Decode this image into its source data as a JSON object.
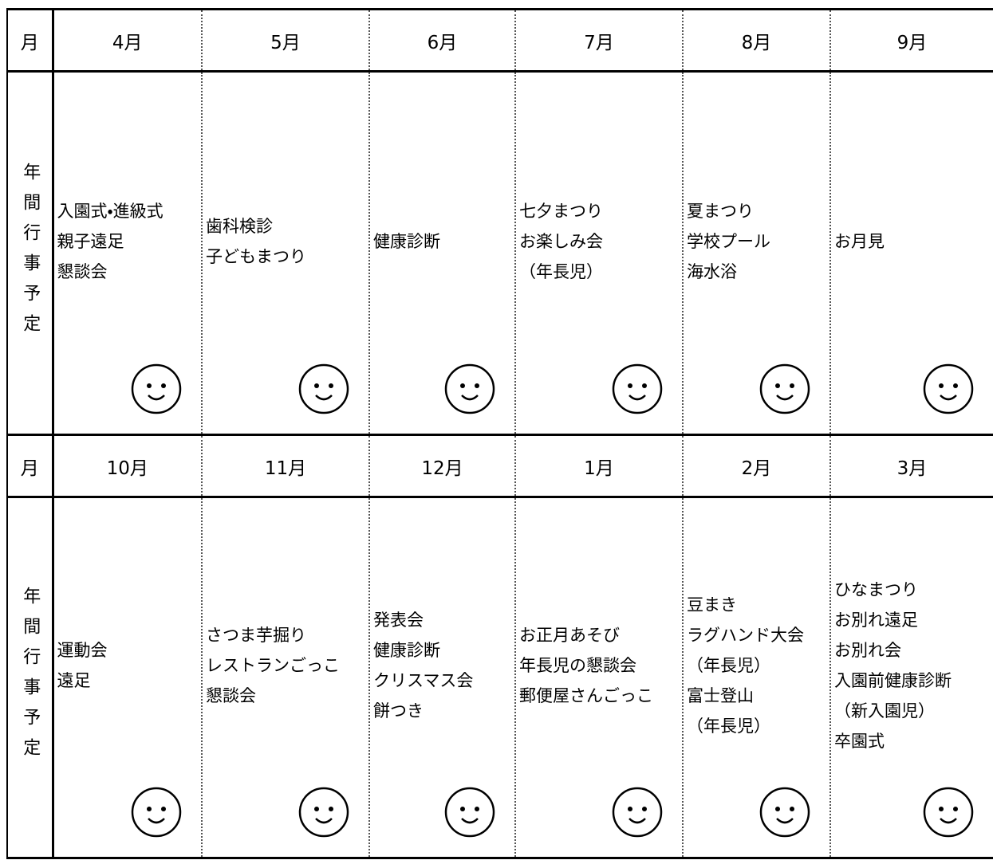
{
  "blocks": [
    {
      "header": {
        "label": "月",
        "months": [
          "4月",
          "5月",
          "6月",
          "7月",
          "8月",
          "9月"
        ]
      },
      "row": {
        "label": "年間行事予定",
        "events": [
          [
            "入園式・進級式",
            "親子遠足",
            "懇談会"
          ],
          [
            "歯科検診",
            "子どもまつり"
          ],
          [
            "健康診断"
          ],
          [
            "七夕まつり",
            "お楽しみ会",
            "（年長児）"
          ],
          [
            "夏まつり",
            "学校プール",
            "海水浴"
          ],
          [
            "お月見"
          ]
        ]
      }
    },
    {
      "header": {
        "label": "月",
        "months": [
          "10月",
          "11月",
          "12月",
          "1月",
          "2月",
          "3月"
        ]
      },
      "row": {
        "label": "年間行事予定",
        "events": [
          [
            "運動会",
            "遠足"
          ],
          [
            "さつま芋掘り",
            "レストランごっこ",
            "懇談会"
          ],
          [
            "発表会",
            "健康診断",
            "クリスマス会",
            "餅つき"
          ],
          [
            "お正月あそび",
            "年長児の懇談会",
            "郵便屋さんごっこ"
          ],
          [
            "豆まき",
            "ラグハンド大会",
            "（年長児）",
            "富士登山",
            "（年長児）"
          ],
          [
            "ひなまつり",
            "お別れ遠足",
            "お別れ会",
            "入園前健康診断",
            "（新入園児）",
            "卒園式"
          ]
        ]
      }
    }
  ]
}
